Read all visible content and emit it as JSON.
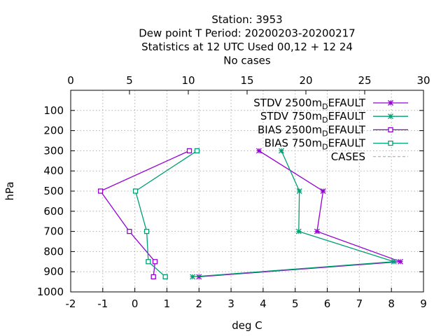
{
  "chart_data": {
    "type": "line",
    "title_lines": [
      "Station:     3953",
      "Dew point T  Period: 20200203-20200217",
      "Statistics at 12 UTC  Used  00,12  + 12 24",
      "No cases"
    ],
    "xlabel": "deg C",
    "ylabel": "hPa",
    "xlim": [
      -2,
      9
    ],
    "x_ticks": [
      -2,
      -1,
      0,
      1,
      2,
      3,
      4,
      5,
      6,
      7,
      8,
      9
    ],
    "x2lim": [
      0,
      30
    ],
    "x2_ticks": [
      0,
      5,
      10,
      15,
      20,
      25,
      30
    ],
    "ylim": [
      1000,
      0
    ],
    "y_ticks": [
      100,
      200,
      300,
      400,
      500,
      600,
      700,
      800,
      900,
      1000
    ],
    "grid": true,
    "legend_position": "top-right",
    "series": [
      {
        "name": "STDV 2500m",
        "name_sub": "D",
        "name_suffix": "EFAULT",
        "color": "#9400d3",
        "marker": "star",
        "points": [
          [
            3.87,
            300
          ],
          [
            5.87,
            500
          ],
          [
            5.68,
            700
          ],
          [
            8.28,
            850
          ],
          [
            2.0,
            925
          ]
        ]
      },
      {
        "name": "STDV 750m",
        "name_sub": "D",
        "name_suffix": "EFAULT",
        "color": "#009e73",
        "marker": "star",
        "points": [
          [
            4.57,
            300
          ],
          [
            5.13,
            500
          ],
          [
            5.11,
            700
          ],
          [
            8.08,
            850
          ],
          [
            1.8,
            925
          ]
        ]
      },
      {
        "name": "BIAS 2500m",
        "name_sub": "D",
        "name_suffix": "EFAULT",
        "color": "#9400d3",
        "marker": "square",
        "points": [
          [
            1.7,
            300
          ],
          [
            -1.07,
            500
          ],
          [
            -0.17,
            700
          ],
          [
            0.63,
            850
          ],
          [
            0.58,
            925
          ]
        ]
      },
      {
        "name": "BIAS 750m",
        "name_sub": "D",
        "name_suffix": "EFAULT",
        "color": "#009e73",
        "marker": "square",
        "points": [
          [
            1.94,
            300
          ],
          [
            0.02,
            500
          ],
          [
            0.37,
            700
          ],
          [
            0.42,
            850
          ],
          [
            0.95,
            925
          ]
        ]
      },
      {
        "name": "CASES",
        "name_sub": "",
        "name_suffix": "",
        "color": "#a0a0a0",
        "marker": "none",
        "dashed": true,
        "points": []
      }
    ]
  }
}
